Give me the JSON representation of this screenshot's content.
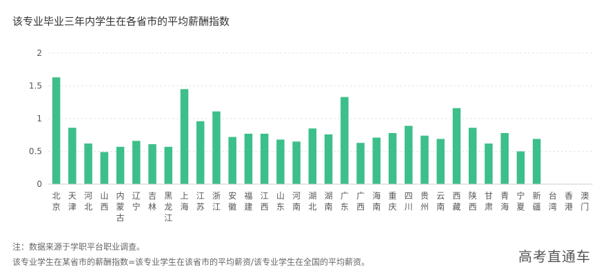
{
  "header": {
    "title": "该专业毕业三年内学生在各省市的平均薪酬指数"
  },
  "footer": {
    "note_source": "注：数据来源于学职平台职业调查。",
    "note_definition": "该专业学生在某省市的薪酬指数=该专业学生在该省市的平均薪资/该专业学生在全国的平均薪资。",
    "brand": "高考直通车"
  },
  "colors": {
    "bar": "#3dbf8a",
    "grid": "#e5e5e5",
    "axis": "#cccccc",
    "text": "#555555"
  },
  "chart_data": {
    "type": "bar",
    "title": "该专业毕业三年内学生在各省市的平均薪酬指数",
    "xlabel": "",
    "ylabel": "",
    "ylim": [
      0,
      2
    ],
    "yticks": [
      "0",
      "0.5",
      "1",
      "1.5",
      "2"
    ],
    "grid": true,
    "categories": [
      "北京",
      "天津",
      "河北",
      "山西",
      "内蒙古",
      "辽宁",
      "吉林",
      "黑龙江",
      "上海",
      "江苏",
      "浙江",
      "安徽",
      "福建",
      "江西",
      "山东",
      "河南",
      "湖北",
      "湖南",
      "广东",
      "广西",
      "海南",
      "重庆",
      "四川",
      "贵州",
      "云南",
      "西藏",
      "陕西",
      "甘肃",
      "青海",
      "宁夏",
      "新疆",
      "台湾",
      "香港",
      "澳门"
    ],
    "values": [
      1.63,
      0.86,
      0.62,
      0.49,
      0.57,
      0.66,
      0.61,
      0.57,
      1.45,
      0.96,
      1.11,
      0.72,
      0.77,
      0.77,
      0.68,
      0.65,
      0.85,
      0.76,
      1.33,
      0.63,
      0.71,
      0.78,
      0.89,
      0.74,
      0.69,
      1.16,
      0.86,
      0.62,
      0.78,
      0.5,
      0.69,
      0,
      0,
      0
    ]
  }
}
